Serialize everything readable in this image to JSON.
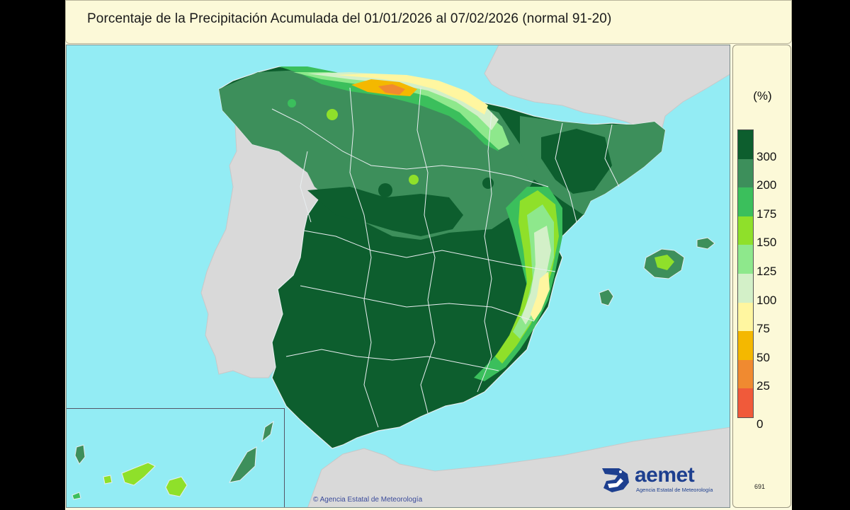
{
  "header": {
    "title": "Porcentaje de la Precipitación Acumulada  del 01/01/2026 al 07/02/2026  (normal 91-20)"
  },
  "map": {
    "region": "Península Ibérica, Baleares y Canarias",
    "colors": {
      "sea": "#93ecf4",
      "land_outside": "#d9d9d9",
      "boundary": "#e8eef0"
    }
  },
  "legend": {
    "unit": "(%)",
    "classes": [
      {
        "label": "300",
        "color": "#0d5e2e"
      },
      {
        "label": "200",
        "color": "#3d8f5b"
      },
      {
        "label": "175",
        "color": "#3bbf5c"
      },
      {
        "label": "150",
        "color": "#8fe02a"
      },
      {
        "label": "125",
        "color": "#8ee88c"
      },
      {
        "label": "100",
        "color": "#d3f0c8"
      },
      {
        "label": "75",
        "color": "#fff6a0"
      },
      {
        "label": "50",
        "color": "#f4b800"
      },
      {
        "label": "25",
        "color": "#f08a30"
      },
      {
        "label": "0",
        "color": "#f05a3a"
      }
    ],
    "code": "691"
  },
  "footer": {
    "logo_text": "aemet",
    "logo_subtitle": "Agencia Estatal de Meteorología",
    "copyright": "© Agencia Estatal de Meteorología"
  }
}
